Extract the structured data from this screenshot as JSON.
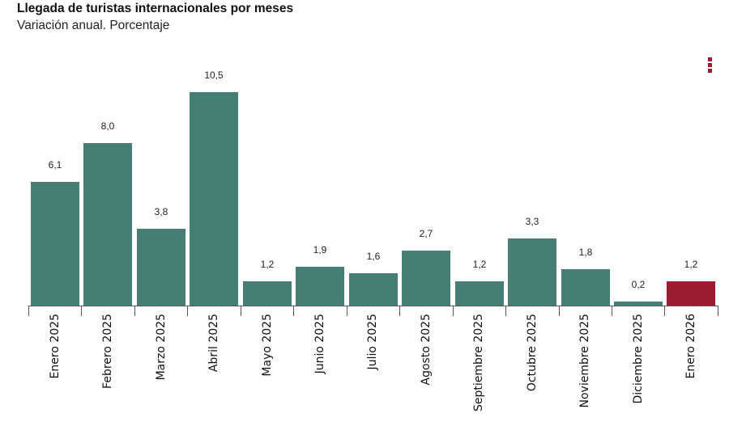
{
  "header": {
    "title": "Llegada de turistas internacionales por meses",
    "subtitle": "Variación anual. Porcentaje"
  },
  "menu": {
    "icon": "kebab-menu-icon",
    "color": "#9b1b30"
  },
  "colors": {
    "default_bar": "#467d74",
    "highlight_bar": "#9b1b30"
  },
  "chart_data": {
    "type": "bar",
    "title": "Llegada de turistas internacionales por meses",
    "subtitle": "Variación anual. Porcentaje",
    "xlabel": "",
    "ylabel": "",
    "categories": [
      "Enero 2025",
      "Febrero 2025",
      "Marzo 2025",
      "Abril 2025",
      "Mayo 2025",
      "Junio 2025",
      "Julio 2025",
      "Agosto 2025",
      "Septiembre 2025",
      "Octubre 2025",
      "Noviembre 2025",
      "Diciembre 2025",
      "Enero 2026"
    ],
    "values": [
      6.1,
      8.0,
      3.8,
      10.5,
      1.2,
      1.9,
      1.6,
      2.7,
      1.2,
      3.3,
      1.8,
      0.2,
      1.2
    ],
    "value_labels": [
      "6,1",
      "8,0",
      "3,8",
      "10,5",
      "1,2",
      "1,9",
      "1,6",
      "2,7",
      "1,2",
      "3,3",
      "1,8",
      "0,2",
      "1,2"
    ],
    "highlight_index": 12,
    "ylim": [
      0,
      10.5
    ],
    "grid": false,
    "legend": "none",
    "x_label_rotation": -90
  }
}
